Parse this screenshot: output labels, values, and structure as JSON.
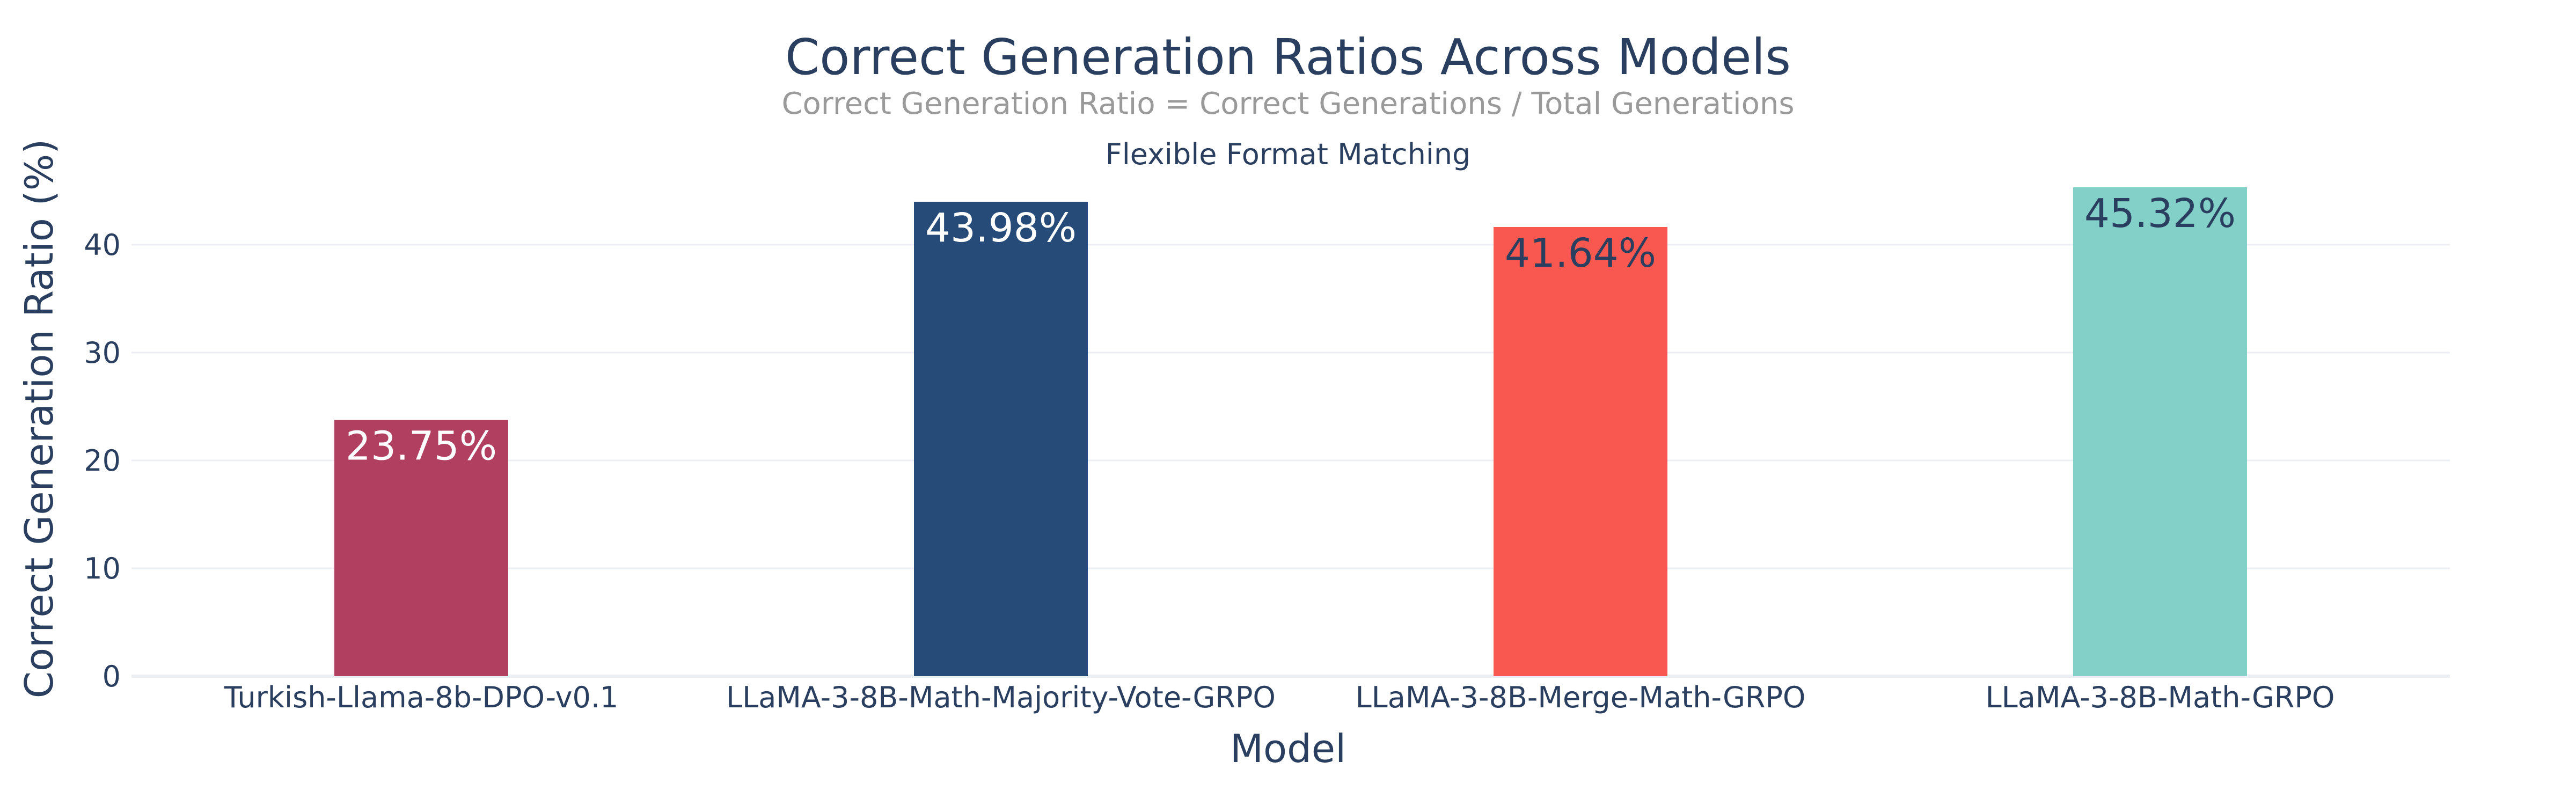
{
  "chart_data": {
    "type": "bar",
    "title": "Correct Generation Ratios Across Models",
    "subtitle": "Correct Generation Ratio = Correct Generations / Total Generations",
    "annotation": "Flexible Format Matching",
    "xlabel": "Model",
    "ylabel": "Correct Generation Ratio (%)",
    "categories": [
      "Turkish-Llama-8b-DPO-v0.1",
      "LLaMA-3-8B-Math-Majority-Vote-GRPO",
      "LLaMA-3-8B-Merge-Math-GRPO",
      "LLaMA-3-8B-Math-GRPO"
    ],
    "values": [
      23.75,
      43.98,
      41.64,
      45.32
    ],
    "data_labels": [
      "23.75%",
      "43.98%",
      "41.64%",
      "45.32%"
    ],
    "bar_colors": [
      "#b03f60",
      "#264b78",
      "#f95850",
      "#83d0c9"
    ],
    "label_colors": [
      "#ffffff",
      "#ffffff",
      "#2a3f5f",
      "#2a3f5f"
    ],
    "ylim": [
      0,
      45.32
    ],
    "yticks": [
      0,
      10,
      20,
      30,
      40
    ],
    "grid": true,
    "legend": "none",
    "colors": {
      "title": "#2a3f5f",
      "subtitle": "#9a9a9a",
      "axis_text": "#2a3f5f",
      "grid": "#ebeef3",
      "zero_line": "#ebeef3"
    }
  }
}
